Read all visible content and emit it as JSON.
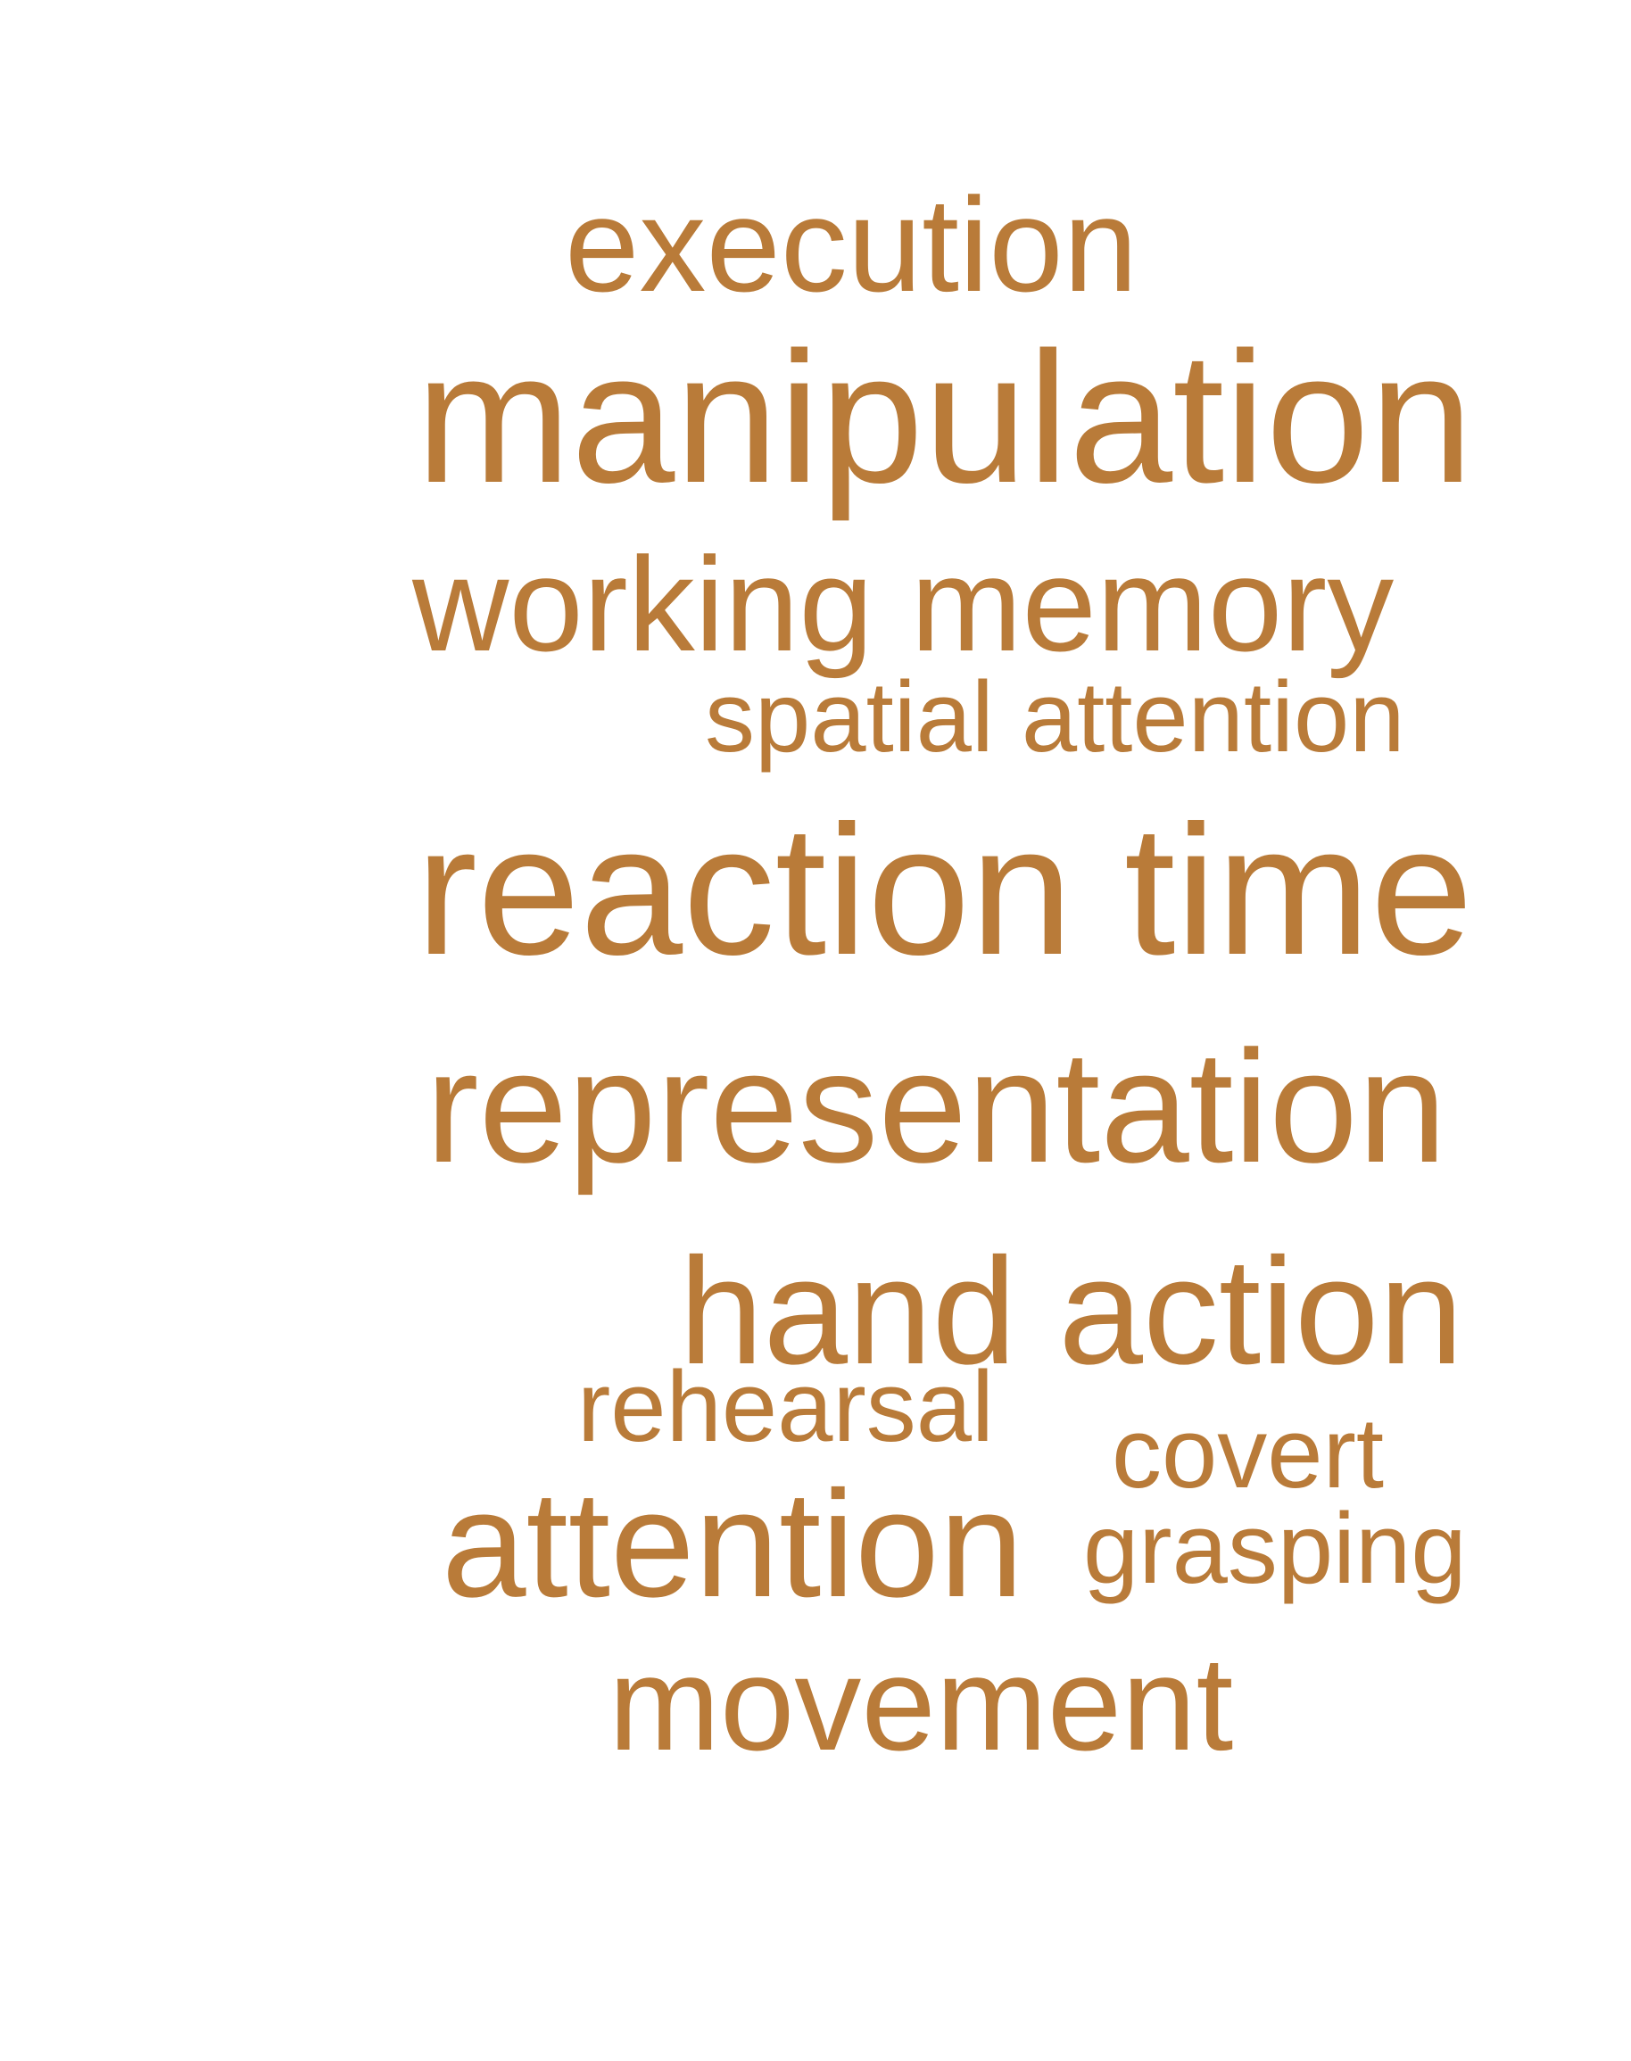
{
  "colors": {
    "background": "#ffffff",
    "word": "#b97b39"
  },
  "words": {
    "execution": "execution",
    "manipulation": "manipulation",
    "working_memory": "working memory",
    "spatial_attention": "spatial attention",
    "reaction_time": "reaction time",
    "representation": "representation",
    "hand_action": "hand action",
    "rehearsal": "rehearsal",
    "covert": "covert",
    "attention": "attention",
    "grasping": "grasping",
    "movement": "movement"
  }
}
